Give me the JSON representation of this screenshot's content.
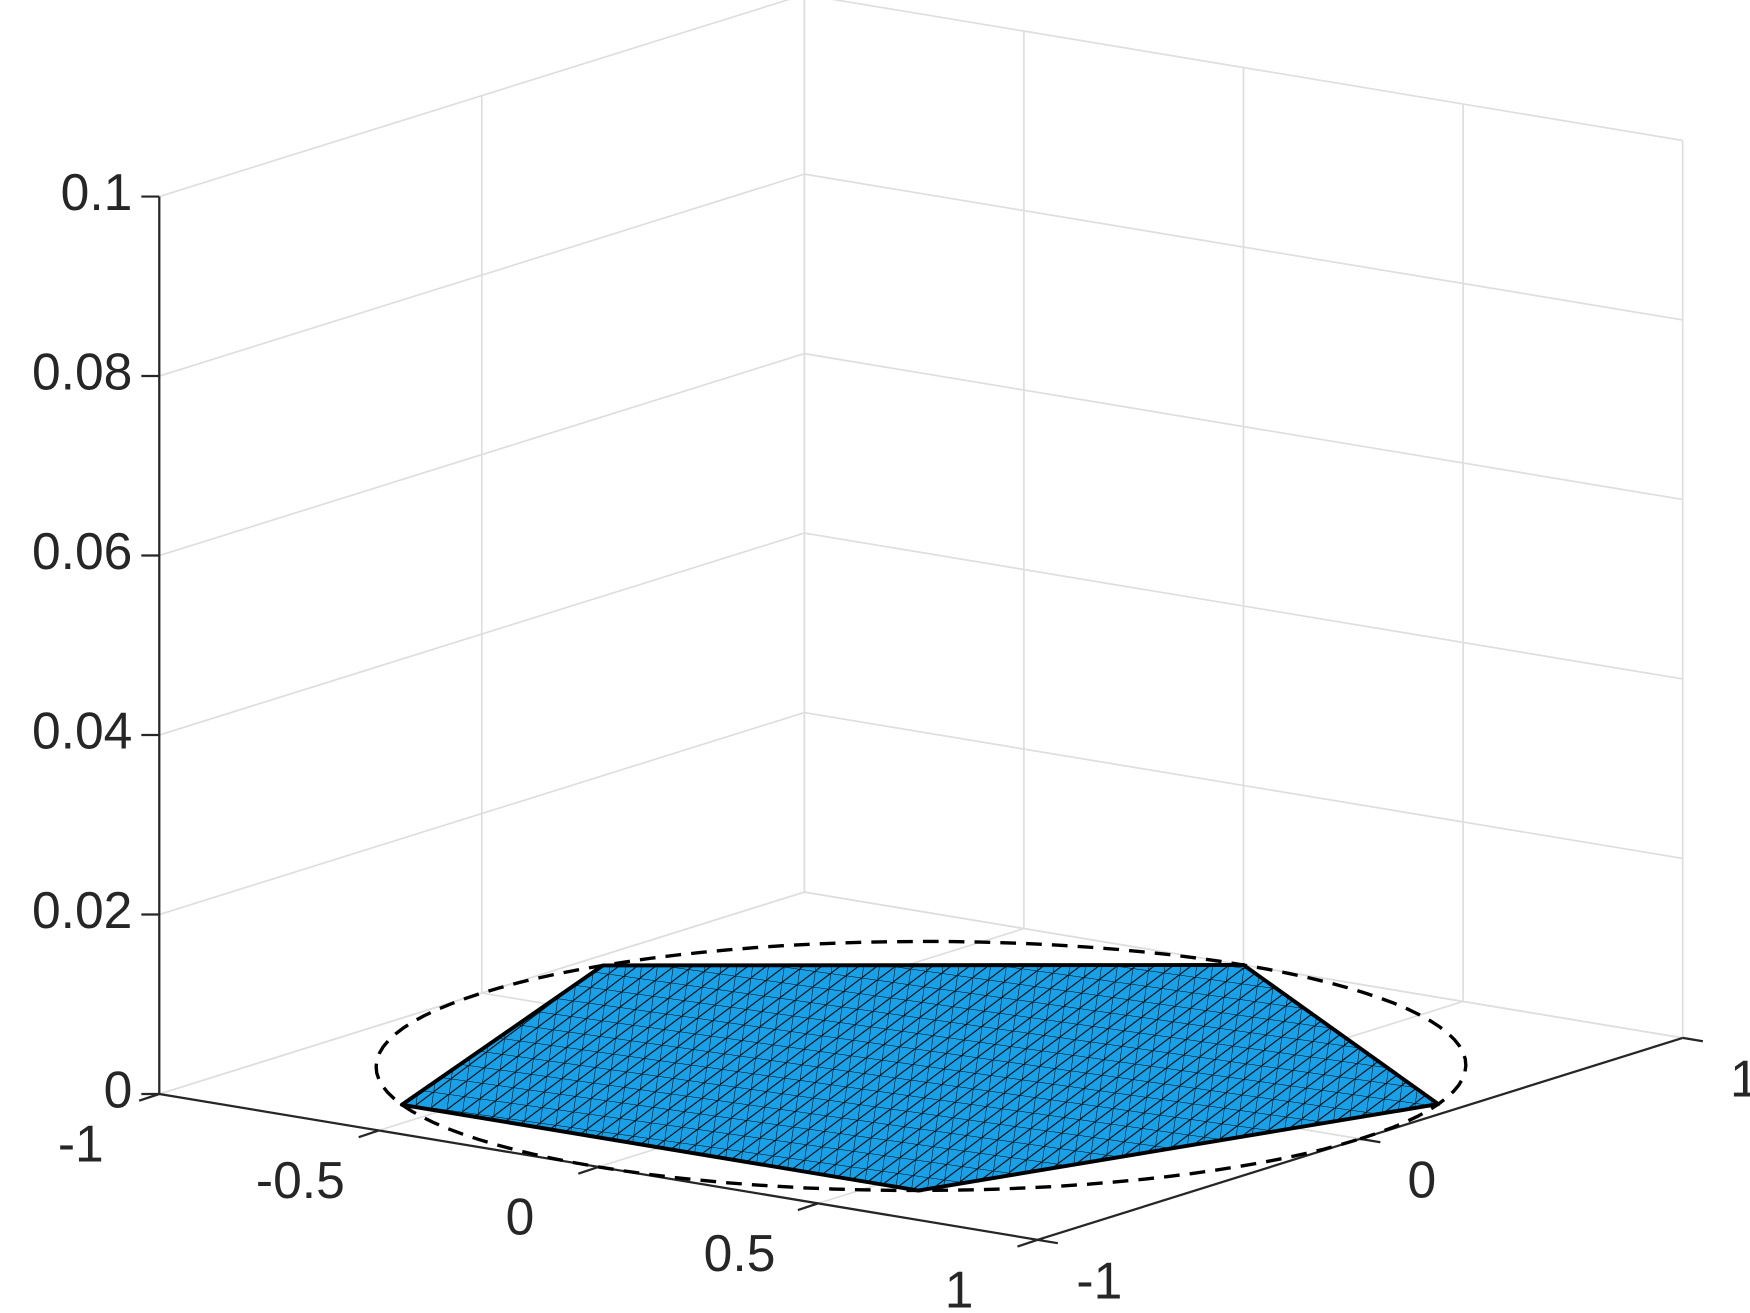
{
  "chart_data": {
    "type": "surface3d",
    "xlim": [
      -1,
      1
    ],
    "xticks": [
      -1,
      -0.5,
      0,
      0.5,
      1
    ],
    "ylim": [
      -1,
      1
    ],
    "yticks": [
      -1,
      0,
      1
    ],
    "zlim": [
      0,
      0.1
    ],
    "zticks": [
      0,
      0.02,
      0.04,
      0.06,
      0.08,
      0.1
    ],
    "grid": true,
    "surface": {
      "x": [
        0,
        -0.951,
        -0.588,
        0.588,
        0.951
      ],
      "y": [
        1,
        0.309,
        -0.809,
        -0.809,
        0.309
      ],
      "z": [
        0,
        0,
        0,
        0,
        0
      ],
      "color": "#1aa0e6"
    },
    "circle": {
      "radius": 1,
      "color": "#000000",
      "style": "dashed"
    }
  }
}
